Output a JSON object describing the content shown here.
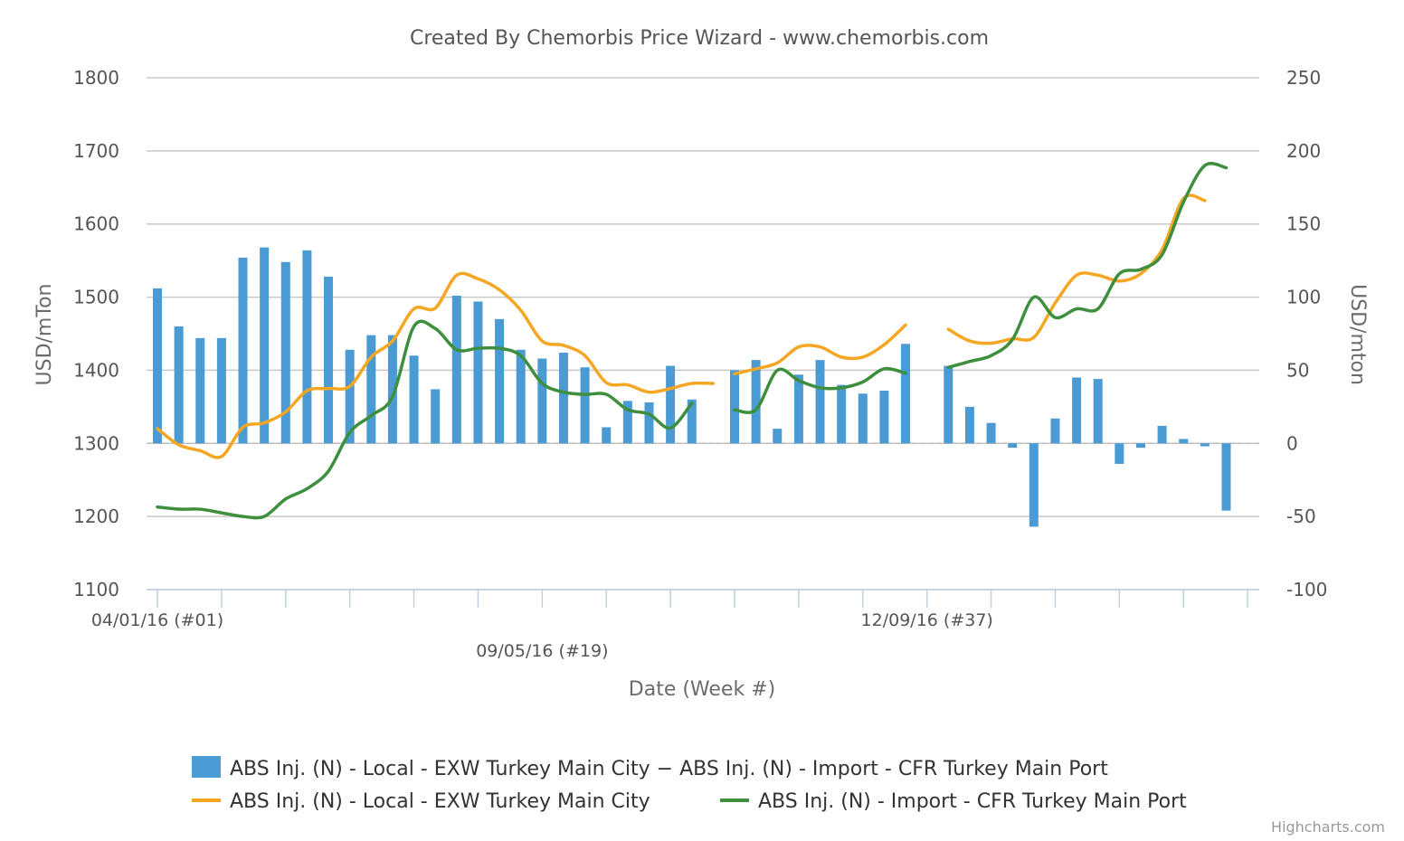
{
  "chart_data": {
    "type": "bar",
    "title": "Created By Chemorbis Price Wizard - www.chemorbis.com",
    "xlabel": "Date (Week #)",
    "ylabel_left": "USD/mTon",
    "ylabel_right": "USD/mton",
    "x_tick_labels": [
      {
        "week": 1,
        "label": "04/01/16 (#01)"
      },
      {
        "week": 19,
        "label": "09/05/16 (#19)"
      },
      {
        "week": 37,
        "label": "12/09/16 (#37)"
      }
    ],
    "y_left": {
      "min": 1100,
      "max": 1800,
      "ticks": [
        1100,
        1200,
        1300,
        1400,
        1500,
        1600,
        1700,
        1800
      ]
    },
    "y_right": {
      "min": -100,
      "max": 250,
      "ticks": [
        -100,
        -50,
        0,
        50,
        100,
        150,
        200,
        250
      ]
    },
    "grid": true,
    "legend_position": "bottom",
    "credit": "Highcharts.com",
    "series": [
      {
        "name": "ABS Inj. (N) - Local - EXW Turkey Main City − ABS Inj. (N) - Import - CFR Turkey Main Port",
        "type": "column",
        "axis": "right",
        "color": "#4a9ad4",
        "x": [
          1,
          2,
          3,
          4,
          5,
          6,
          7,
          8,
          9,
          10,
          11,
          12,
          13,
          14,
          15,
          16,
          17,
          18,
          19,
          20,
          21,
          22,
          23,
          24,
          25,
          26,
          28,
          29,
          30,
          31,
          32,
          33,
          34,
          35,
          36,
          38,
          39,
          40,
          41,
          42,
          43,
          44,
          45,
          46,
          47,
          48,
          49,
          50,
          51
        ],
        "values": [
          106,
          80,
          72,
          72,
          127,
          134,
          124,
          132,
          114,
          64,
          74,
          74,
          60,
          37,
          101,
          97,
          85,
          64,
          58,
          62,
          52,
          11,
          29,
          28,
          53,
          30,
          50,
          57,
          10,
          47,
          57,
          40,
          34,
          36,
          68,
          53,
          25,
          14,
          -3,
          -57,
          17,
          45,
          44,
          -14,
          -3,
          12,
          3,
          -2,
          -46
        ]
      },
      {
        "name": "ABS Inj. (N) - Local - EXW Turkey Main City",
        "type": "line",
        "axis": "left",
        "color": "#f5a623",
        "segments": [
          {
            "x": [
              1,
              2,
              3,
              4,
              5,
              6,
              7,
              8,
              9,
              10,
              11,
              12,
              13,
              14,
              15,
              16,
              17,
              18,
              19,
              20,
              21,
              22,
              23,
              24,
              25,
              26,
              27
            ],
            "values": [
              1320,
              1298,
              1290,
              1282,
              1322,
              1328,
              1343,
              1372,
              1375,
              1378,
              1418,
              1440,
              1484,
              1485,
              1530,
              1525,
              1510,
              1482,
              1440,
              1434,
              1420,
              1383,
              1380,
              1370,
              1375,
              1382,
              1382
            ]
          },
          {
            "x": [
              28,
              29,
              30,
              31,
              32,
              33,
              34,
              35,
              36
            ],
            "values": [
              1395,
              1402,
              1410,
              1432,
              1432,
              1418,
              1418,
              1435,
              1462
            ]
          },
          {
            "x": [
              38,
              39,
              40,
              41,
              42,
              43,
              44,
              45,
              46,
              47,
              48,
              49,
              50
            ],
            "values": [
              1456,
              1440,
              1437,
              1443,
              1445,
              1492,
              1530,
              1530,
              1522,
              1532,
              1565,
              1635,
              1632
            ]
          }
        ]
      },
      {
        "name": "ABS Inj. (N) - Import - CFR Turkey Main Port",
        "type": "line",
        "axis": "left",
        "color": "#3d8f3d",
        "segments": [
          {
            "x": [
              1,
              2,
              3,
              4,
              5,
              6,
              7,
              8,
              9,
              10,
              11,
              12,
              13,
              14,
              15,
              16,
              17,
              18,
              19,
              20,
              21,
              22,
              23,
              24,
              25,
              26
            ],
            "values": [
              1213,
              1210,
              1210,
              1205,
              1200,
              1200,
              1224,
              1238,
              1262,
              1315,
              1338,
              1364,
              1460,
              1457,
              1428,
              1430,
              1430,
              1420,
              1382,
              1370,
              1367,
              1367,
              1346,
              1340,
              1321,
              1355
            ]
          },
          {
            "x": [
              28,
              29,
              30,
              31,
              32,
              33,
              34,
              35,
              36
            ],
            "values": [
              1346,
              1346,
              1400,
              1386,
              1376,
              1376,
              1384,
              1402,
              1396
            ]
          },
          {
            "x": [
              38,
              39,
              40,
              41,
              42,
              43,
              44,
              45,
              46,
              47,
              48,
              49,
              50,
              51
            ],
            "values": [
              1404,
              1412,
              1420,
              1442,
              1500,
              1472,
              1484,
              1484,
              1532,
              1538,
              1558,
              1630,
              1680,
              1677
            ]
          }
        ]
      }
    ]
  }
}
